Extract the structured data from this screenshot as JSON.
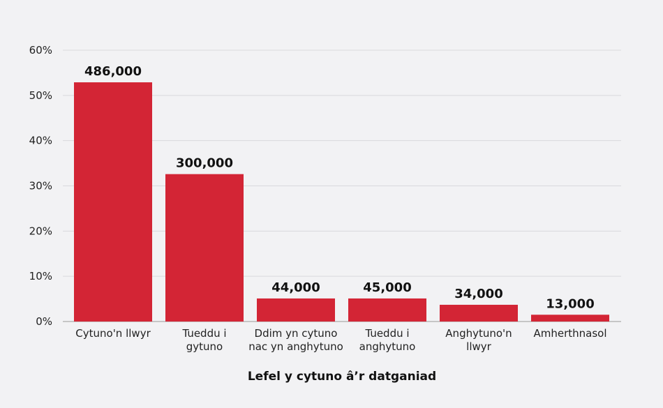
{
  "chart_data": {
    "type": "bar",
    "title": "",
    "xlabel": "Lefel y cytuno â’r datganiad",
    "ylabel": "",
    "ylim": [
      0,
      60
    ],
    "yticks": [
      "0%",
      "10%",
      "20%",
      "30%",
      "40%",
      "50%",
      "60%"
    ],
    "grid": true,
    "categories": [
      [
        "Cytuno'n llwyr"
      ],
      [
        "Tueddu i",
        "gytuno"
      ],
      [
        "Ddim yn cytuno",
        "nac yn anghytuno"
      ],
      [
        "Tueddu i",
        "anghytuno"
      ],
      [
        "Anghytuno'n",
        "llwyr"
      ],
      [
        "Amherthnasol"
      ]
    ],
    "values": [
      52.9,
      32.6,
      5.1,
      5.1,
      3.7,
      1.5
    ],
    "data_labels": [
      "486,000",
      "300,000",
      "44,000",
      "45,000",
      "34,000",
      "13,000"
    ],
    "bar_color": "#d32535"
  }
}
